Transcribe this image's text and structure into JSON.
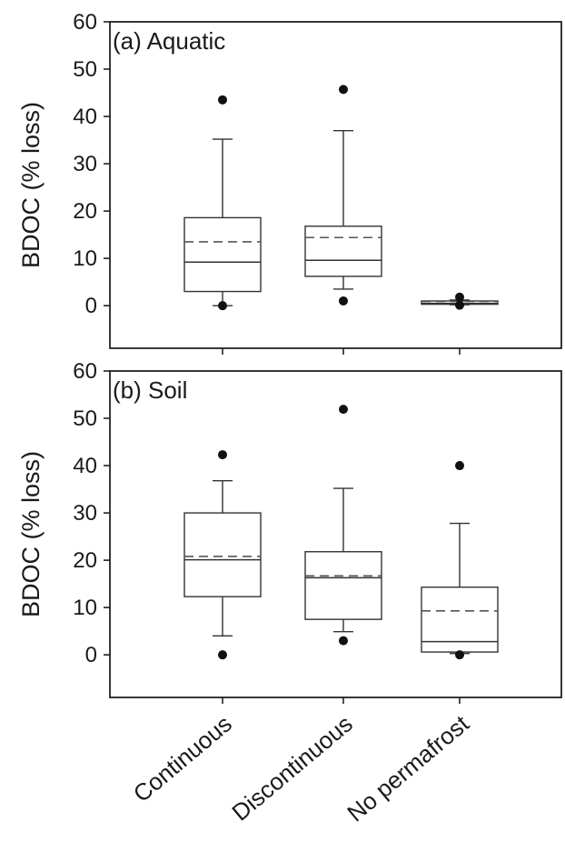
{
  "chart_data": [
    {
      "type": "box",
      "panel_label": "(a) Aquatic",
      "ylabel": "BDOC (% loss)",
      "ylim": [
        -9,
        60
      ],
      "yticks": [
        0,
        10,
        20,
        30,
        40,
        50,
        60
      ],
      "categories": [
        "Continuous",
        "Discontinuous",
        "No permafrost"
      ],
      "boxes": [
        {
          "category": "Continuous",
          "whisker_low": 0,
          "q1": 3,
          "median": 9.2,
          "mean": 13.5,
          "q3": 18.6,
          "whisker_high": 35.2,
          "outliers": [
            43.5,
            0
          ]
        },
        {
          "category": "Discontinuous",
          "whisker_low": 3.5,
          "q1": 6.2,
          "median": 9.6,
          "mean": 14.4,
          "q3": 16.8,
          "whisker_high": 37,
          "outliers": [
            45.7,
            1
          ]
        },
        {
          "category": "No permafrost",
          "whisker_low": 0.2,
          "q1": 0.3,
          "median": 0.5,
          "mean": 0.9,
          "q3": 1.0,
          "whisker_high": 1.2,
          "outliers": [
            1.8,
            0.1
          ]
        }
      ]
    },
    {
      "type": "box",
      "panel_label": "(b) Soil",
      "ylabel": "BDOC (% loss)",
      "ylim": [
        -9,
        60
      ],
      "yticks": [
        0,
        10,
        20,
        30,
        40,
        50,
        60
      ],
      "categories": [
        "Continuous",
        "Discontinuous",
        "No permafrost"
      ],
      "boxes": [
        {
          "category": "Continuous",
          "whisker_low": 4,
          "q1": 12.3,
          "median": 20.1,
          "mean": 20.8,
          "q3": 30,
          "whisker_high": 36.8,
          "outliers": [
            42.3,
            0
          ]
        },
        {
          "category": "Discontinuous",
          "whisker_low": 4.9,
          "q1": 7.5,
          "median": 16.3,
          "mean": 16.7,
          "q3": 21.8,
          "whisker_high": 35.2,
          "outliers": [
            51.9,
            3
          ]
        },
        {
          "category": "No permafrost",
          "whisker_low": 0.3,
          "q1": 0.6,
          "median": 2.8,
          "mean": 9.3,
          "q3": 14.3,
          "whisker_high": 27.8,
          "outliers": [
            40,
            0
          ]
        }
      ]
    }
  ]
}
